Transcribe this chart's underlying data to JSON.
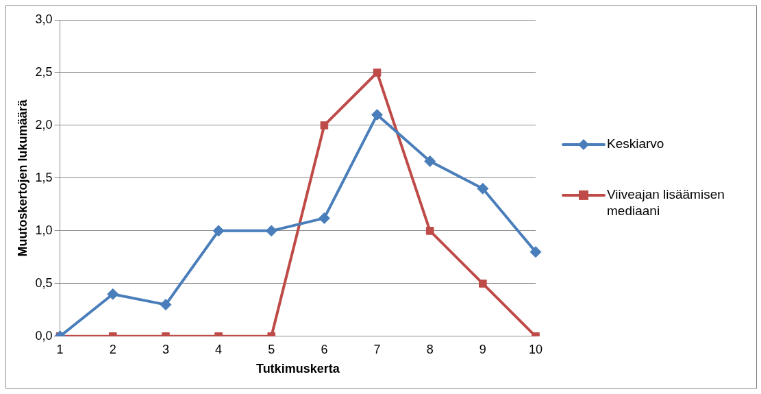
{
  "chart_data": {
    "type": "line",
    "xlabel": "Tutkimuskerta",
    "ylabel": "Muutoskertojen lukumäärä",
    "categories": [
      "1",
      "2",
      "3",
      "4",
      "5",
      "6",
      "7",
      "8",
      "9",
      "10"
    ],
    "series": [
      {
        "name": "Keskiarvo",
        "color": "#4a7ebb",
        "marker": "diamond",
        "values": [
          0,
          0.4,
          0.3,
          1.0,
          1.0,
          1.12,
          2.1,
          1.66,
          1.4,
          0.8
        ]
      },
      {
        "name": "Viiveajan lisäämisen mediaani",
        "color": "#be4b48",
        "marker": "square",
        "values": [
          0,
          0,
          0,
          0,
          0,
          2.0,
          2.5,
          1.0,
          0.5,
          0
        ]
      }
    ],
    "ylim": [
      0,
      3
    ],
    "yticks": [
      {
        "value": 0,
        "label": "0,0"
      },
      {
        "value": 0.5,
        "label": "0,5"
      },
      {
        "value": 1,
        "label": "1,0"
      },
      {
        "value": 1.5,
        "label": "1,5"
      },
      {
        "value": 2,
        "label": "2,0"
      },
      {
        "value": 2.5,
        "label": "2,5"
      },
      {
        "value": 3,
        "label": "3,0"
      }
    ],
    "grid": "y",
    "legend": "right",
    "line_style": "solid"
  }
}
